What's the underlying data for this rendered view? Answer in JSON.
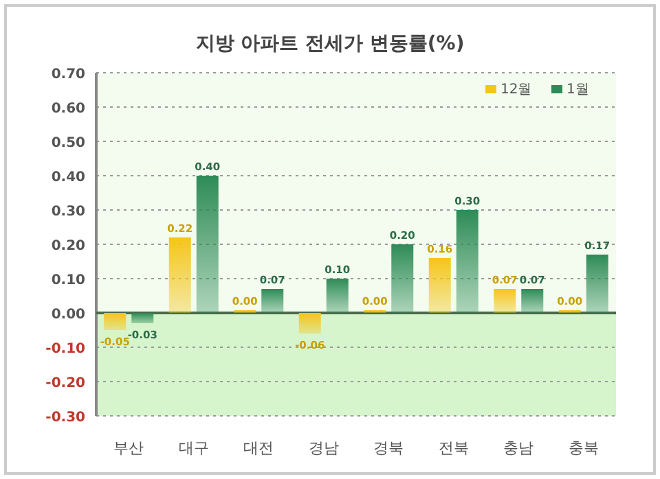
{
  "chart_data": {
    "type": "bar",
    "title": "지방 아파트 전세가 변동률(%)",
    "categories": [
      "부산",
      "대구",
      "대전",
      "경남",
      "경북",
      "전북",
      "충남",
      "충북"
    ],
    "series": [
      {
        "name": "12월",
        "color": "#f5c518",
        "values": [
          -0.05,
          0.22,
          0.0,
          -0.06,
          0.0,
          0.16,
          0.07,
          0.0
        ],
        "value_labels": [
          "-0.05",
          "0.22",
          "0.00",
          "-0.06",
          "0.00",
          "0.16",
          "0.07",
          "0.00"
        ]
      },
      {
        "name": "1월",
        "color": "#2e8b57",
        "values": [
          -0.03,
          0.4,
          0.07,
          0.1,
          0.2,
          0.3,
          0.07,
          0.17
        ],
        "value_labels": [
          "-0.03",
          "0.40",
          "0.07",
          "0.10",
          "0.20",
          "0.30",
          "0.07",
          "0.17"
        ]
      }
    ],
    "ylim": [
      -0.3,
      0.7
    ],
    "yticks": [
      {
        "value": -0.3,
        "label": "-0.30"
      },
      {
        "value": -0.2,
        "label": "-0.20"
      },
      {
        "value": -0.1,
        "label": "-0.10"
      },
      {
        "value": 0,
        "label": "0.00"
      },
      {
        "value": 0.1,
        "label": "0.10"
      },
      {
        "value": 0.2,
        "label": "0.20"
      },
      {
        "value": 0.3,
        "label": "0.30"
      },
      {
        "value": 0.4,
        "label": "0.40"
      },
      {
        "value": 0.5,
        "label": "0.50"
      },
      {
        "value": 0.6,
        "label": "0.60"
      },
      {
        "value": 0.7,
        "label": "0.70"
      }
    ],
    "grid": "y",
    "legend": "top right",
    "bands": [
      {
        "axis": "y",
        "from": -0.3,
        "to": 0,
        "color": "#d6f5cc"
      }
    ]
  }
}
